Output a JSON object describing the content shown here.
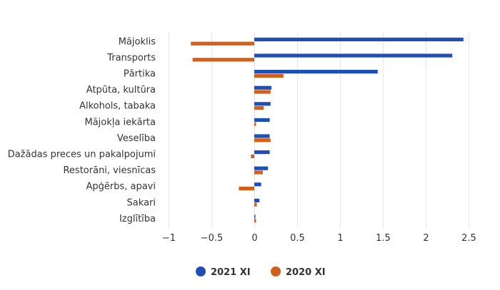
{
  "chart_data": {
    "type": "bar",
    "orientation": "horizontal",
    "categories": [
      "Mājoklis",
      "Transports",
      "Pārtika",
      "Atpūta, kultūra",
      "Alkohols, tabaka",
      "Mājokļa iekārta",
      "Veselība",
      "Dažādas preces un pakalpojumi",
      "Restorāni, viesnīcas",
      "Apģērbs, apavi",
      "Sakari",
      "Izglītība"
    ],
    "series": [
      {
        "name": "2021 XI",
        "color": "#1f4fb4",
        "values": [
          2.44,
          2.31,
          1.44,
          0.2,
          0.19,
          0.18,
          0.18,
          0.18,
          0.16,
          0.08,
          0.06,
          0.01
        ]
      },
      {
        "name": "2020 XI",
        "color": "#d2601a",
        "values": [
          -0.74,
          -0.72,
          0.34,
          0.19,
          0.11,
          0.02,
          0.19,
          -0.04,
          0.1,
          -0.18,
          0.03,
          0.02
        ]
      }
    ],
    "xlim": [
      -1,
      2.5
    ],
    "xticks": [
      "−1",
      "−0.5",
      "0",
      "0.5",
      "1",
      "1.5",
      "2",
      "2.5"
    ],
    "grid": "vertical",
    "legend_position": "bottom-center"
  }
}
